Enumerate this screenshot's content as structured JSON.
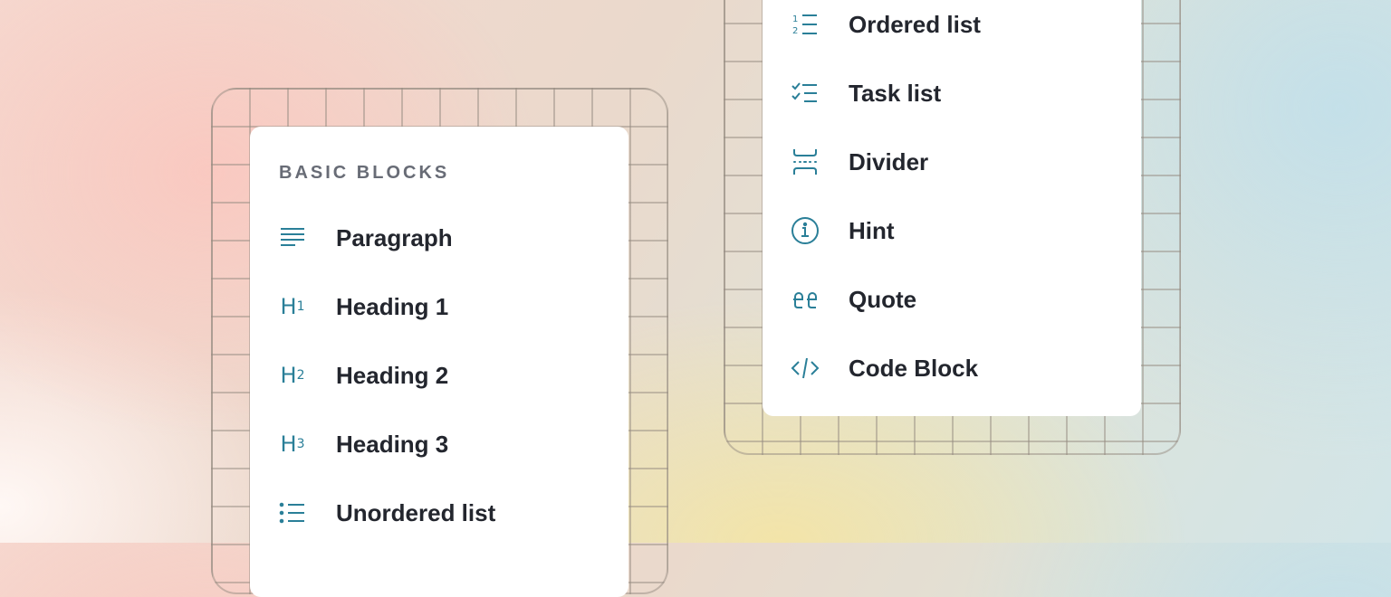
{
  "colors": {
    "icon": "#2a7f98",
    "text": "#23262e",
    "section_label": "#686c76"
  },
  "left_menu": {
    "section_title": "BASIC BLOCKS",
    "items": [
      {
        "label": "Paragraph",
        "icon": "paragraph-icon"
      },
      {
        "label": "Heading 1",
        "icon": "heading-1-icon",
        "icon_text": "H",
        "icon_sub": "1"
      },
      {
        "label": "Heading 2",
        "icon": "heading-2-icon",
        "icon_text": "H",
        "icon_sub": "2"
      },
      {
        "label": "Heading 3",
        "icon": "heading-3-icon",
        "icon_text": "H",
        "icon_sub": "3"
      },
      {
        "label": "Unordered list",
        "icon": "unordered-list-icon"
      }
    ]
  },
  "right_menu": {
    "items": [
      {
        "label": "Ordered list",
        "icon": "ordered-list-icon"
      },
      {
        "label": "Task list",
        "icon": "task-list-icon"
      },
      {
        "label": "Divider",
        "icon": "divider-icon"
      },
      {
        "label": "Hint",
        "icon": "info-icon"
      },
      {
        "label": "Quote",
        "icon": "quote-icon"
      },
      {
        "label": "Code Block",
        "icon": "code-icon"
      }
    ]
  }
}
